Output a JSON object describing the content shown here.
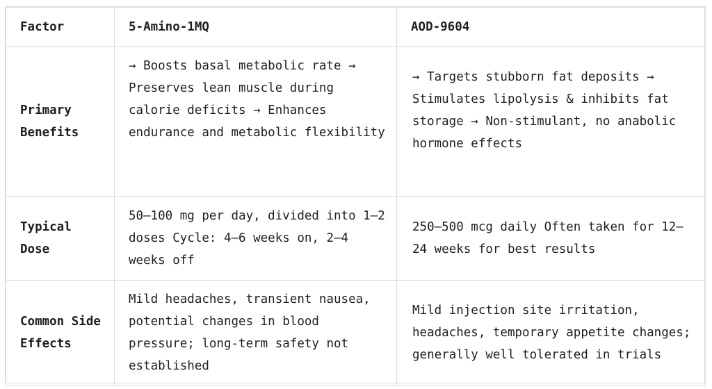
{
  "table": {
    "headers": [
      "Factor",
      "5-Amino-1MQ",
      "AOD-9604"
    ],
    "rows": [
      {
        "factor": "Primary Benefits",
        "amino": "→ Boosts basal metabolic rate → Preserves lean muscle during calorie deficits → Enhances endurance and metabolic flexibility",
        "aod": "→ Targets stubborn fat deposits → Stimulates lipolysis & inhibits fat storage → Non-stimulant, no anabolic hormone effects"
      },
      {
        "factor": "Typical Dose",
        "amino": "50–100 mg per day, divided into 1–2 doses Cycle: 4–6 weeks on, 2–4 weeks off",
        "aod": "250–500 mcg daily Often taken for 12–24 weeks for best results"
      },
      {
        "factor": "Common Side Effects",
        "amino": "Mild headaches, transient nausea, potential changes in blood pressure; long-term safety not established",
        "aod": "Mild injection site irritation, headaches, temporary appetite changes; generally well tolerated in trials"
      }
    ]
  }
}
